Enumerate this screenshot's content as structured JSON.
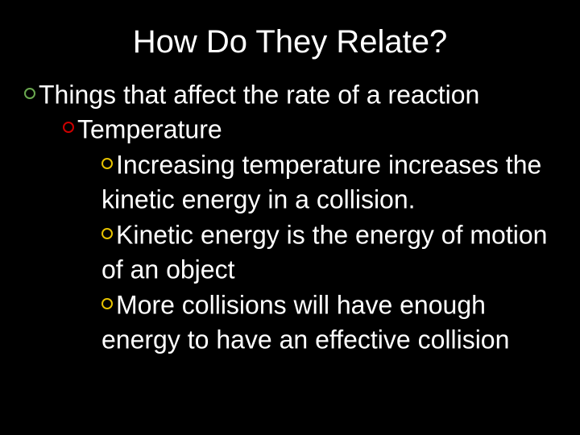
{
  "slide": {
    "title": "How Do They Relate?",
    "background_color": "#000000",
    "text_color": "#ffffff",
    "title_fontsize": 40,
    "body_fontsize": 32,
    "bullet_colors": {
      "level1": "#6aa84f",
      "level2": "#cc0000",
      "level3": "#e6c200"
    },
    "level1_text": "Things that affect the rate of a reaction",
    "level2_text": "Temperature",
    "level3_items": [
      "Increasing temperature increases the kinetic energy in a collision.",
      "Kinetic energy is the energy of motion of an object",
      "More collisions will have enough energy to have an effective collision"
    ]
  }
}
